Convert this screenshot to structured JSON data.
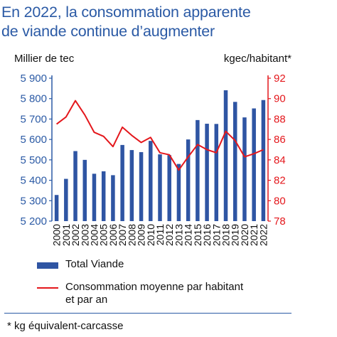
{
  "title_line1": "En 2022, la consommation apparente",
  "title_line2": "de viande continue d’augmenter",
  "chart_data": {
    "type": "bar",
    "categories": [
      "2000",
      "2001",
      "2002",
      "2003",
      "2004",
      "2005",
      "2006",
      "2007",
      "2008",
      "2009",
      "2010",
      "2011",
      "2012",
      "2013",
      "2014",
      "2015",
      "2016",
      "2017",
      "2018",
      "2019",
      "2020",
      "2021",
      "2022"
    ],
    "series": [
      {
        "name": "Total Viande",
        "type": "bar",
        "axis": "left",
        "color": "#2f55a3",
        "values": [
          5328,
          5407,
          5543,
          5500,
          5432,
          5444,
          5425,
          5573,
          5548,
          5538,
          5593,
          5527,
          5523,
          5480,
          5600,
          5695,
          5677,
          5676,
          5841,
          5784,
          5708,
          5752,
          5793
        ]
      },
      {
        "name": "Consommation moyenne par habitant et par an",
        "type": "line",
        "axis": "right",
        "color": "#e4171c",
        "values": [
          87.5,
          88.2,
          89.8,
          88.4,
          86.7,
          86.3,
          85.3,
          87.2,
          86.4,
          85.7,
          86.2,
          84.7,
          84.5,
          83.0,
          84.3,
          85.5,
          85.0,
          84.7,
          86.8,
          85.9,
          84.3,
          84.6,
          85.0
        ]
      }
    ],
    "y_left": {
      "label": "Millier de tec",
      "ylim": [
        5200,
        5900
      ],
      "ticks": [
        "5 200",
        "5 300",
        "5 400",
        "5 500",
        "5 600",
        "5 700",
        "5 800",
        "5 900"
      ],
      "tick_values": [
        5200,
        5300,
        5400,
        5500,
        5600,
        5700,
        5800,
        5900
      ]
    },
    "y_right": {
      "label": "kgec/habitant*",
      "ylim": [
        78,
        92
      ],
      "ticks": [
        "78",
        "80",
        "82",
        "84",
        "86",
        "88",
        "90",
        "92"
      ],
      "tick_values": [
        78,
        80,
        82,
        84,
        86,
        88,
        90,
        92
      ],
      "color": "#e4171c"
    },
    "grid": false,
    "legend_position": "bottom-left",
    "bar_color": "#2f55a3",
    "line_color": "#e4171c",
    "axis_color": "#2b5aa5"
  },
  "legend": {
    "bar_label": "Total Viande",
    "line_label_1": "Consommation moyenne par habitant",
    "line_label_2": "et par an"
  },
  "footnote": "* kg équivalent-carcasse"
}
